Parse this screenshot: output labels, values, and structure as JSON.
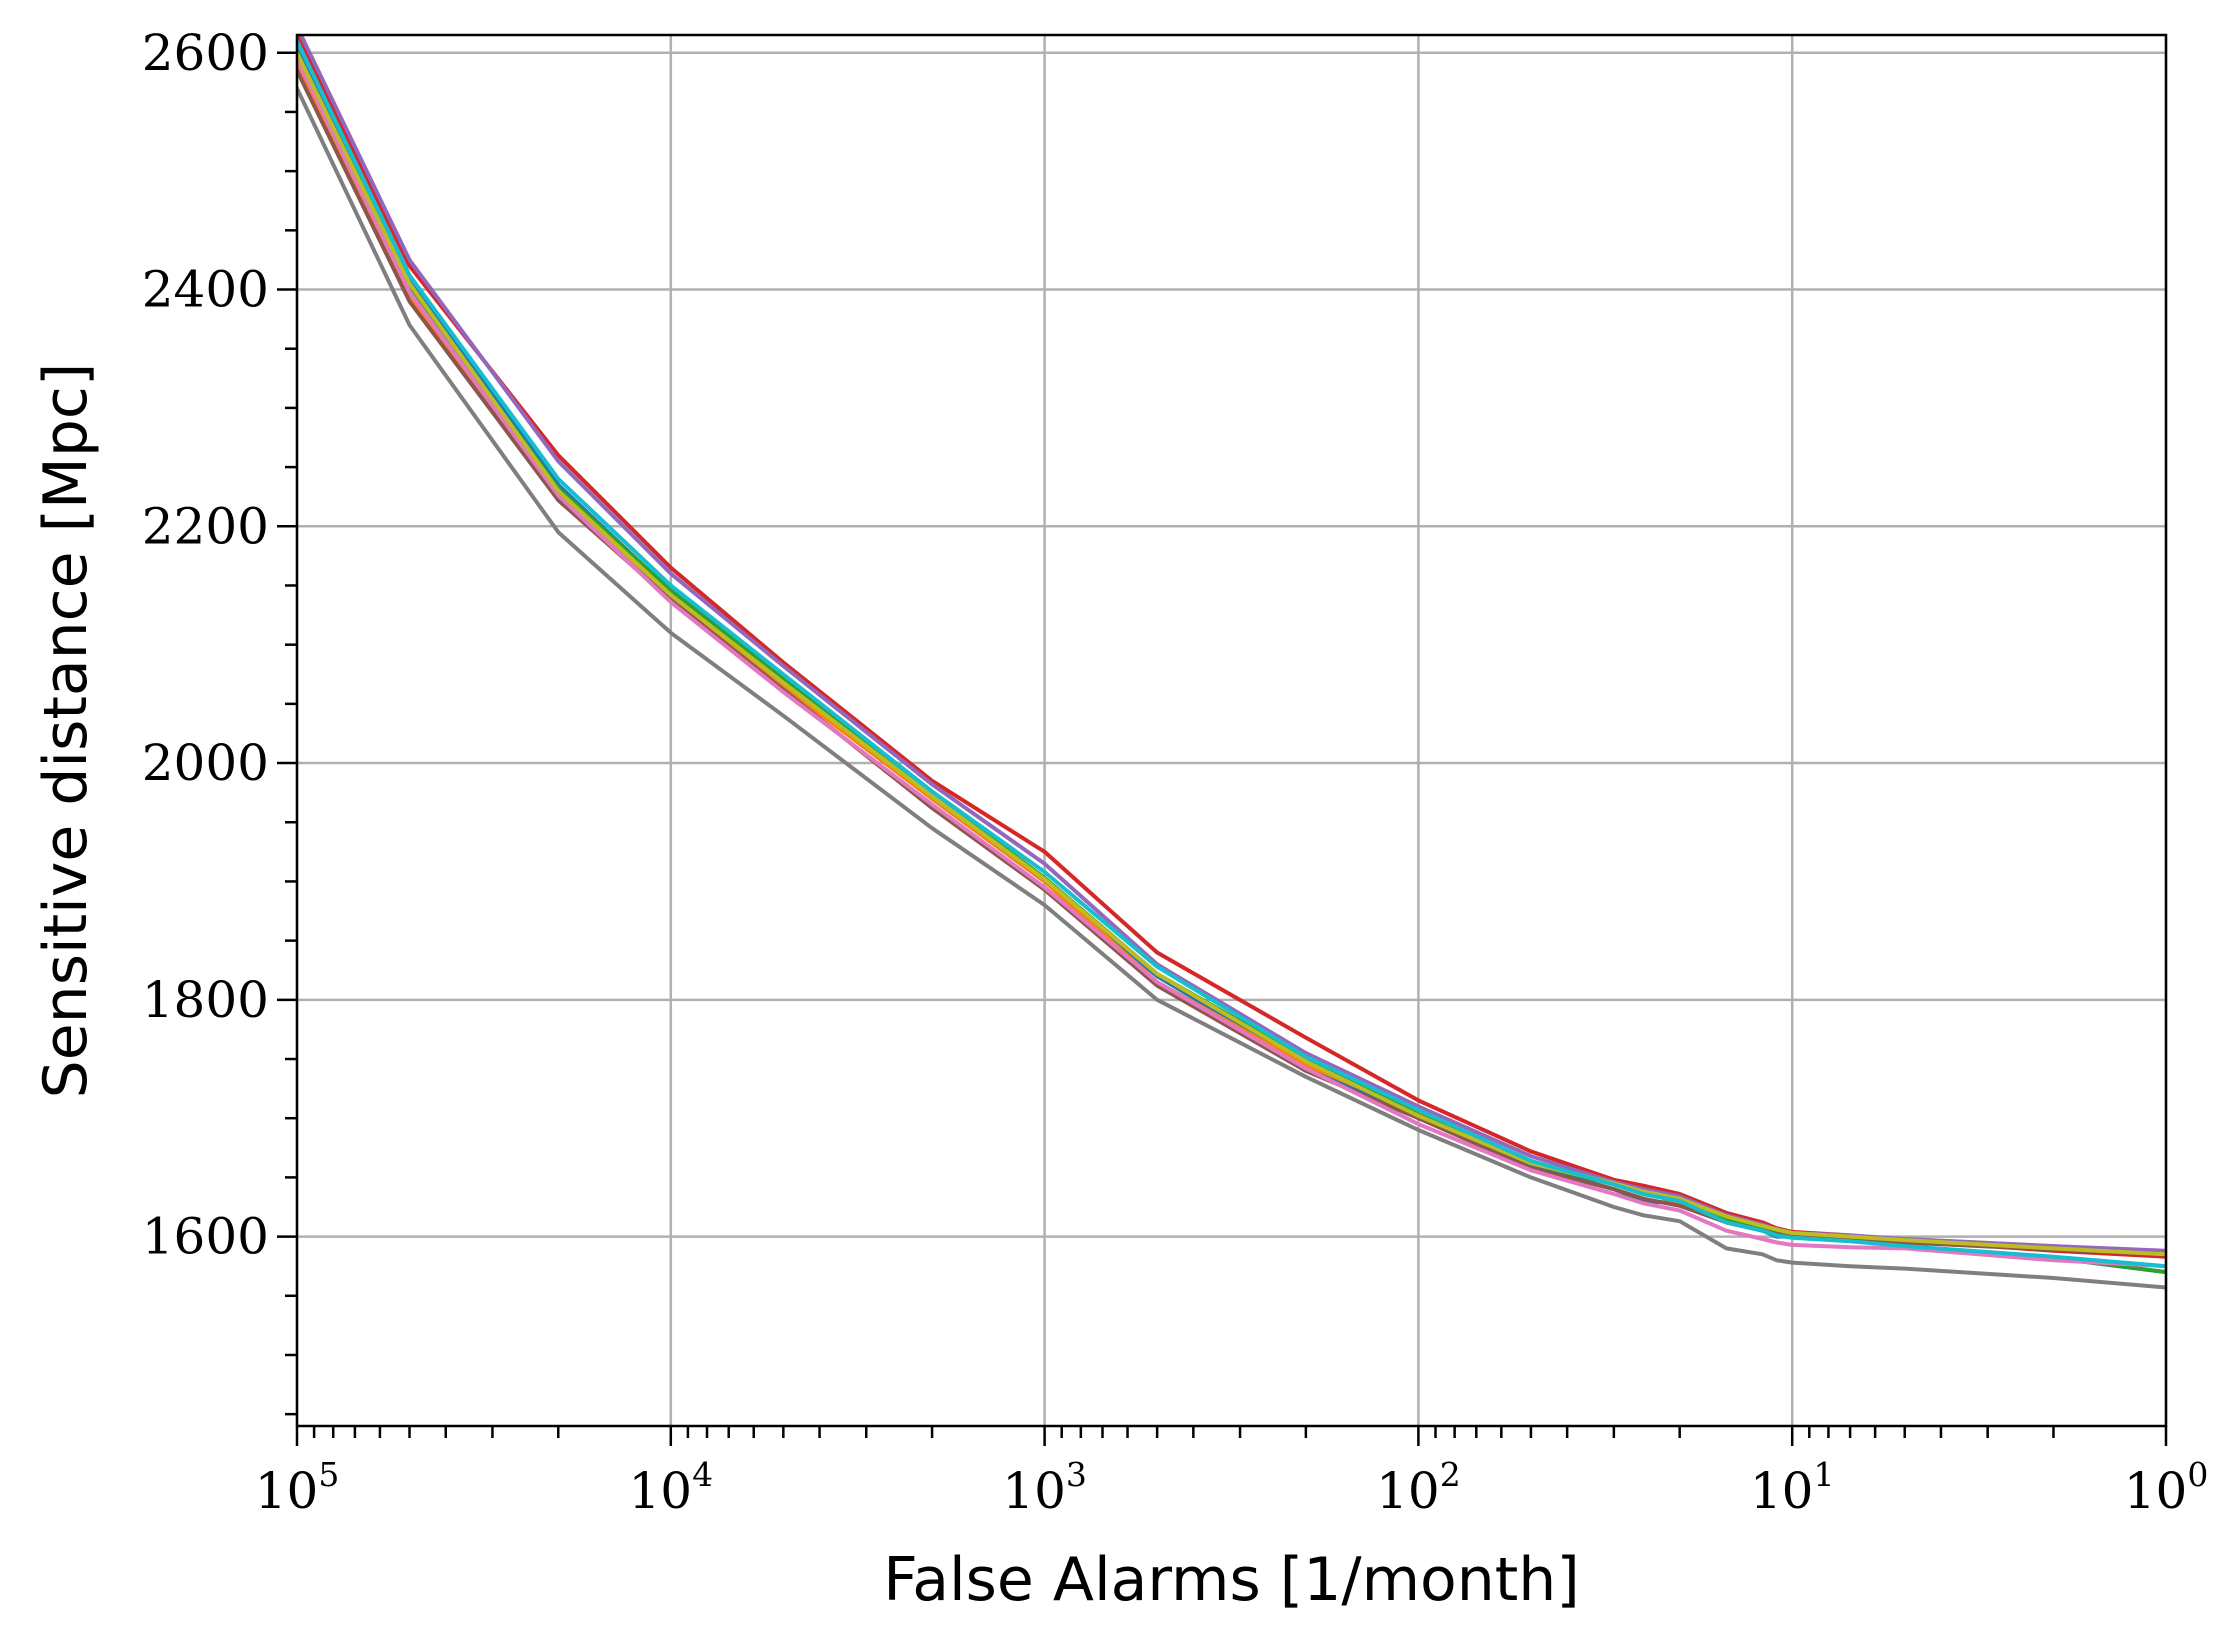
{
  "chart_data": {
    "type": "line",
    "title": "",
    "xlabel": "False Alarms [1/month]",
    "ylabel": "Sensitive distance [Mpc]",
    "x_scale": "log",
    "x_reversed": true,
    "xlim": [
      100000,
      1
    ],
    "ylim": [
      1440,
      2615
    ],
    "x_ticks": [
      {
        "value": 100000,
        "base": "10",
        "exp": "5"
      },
      {
        "value": 10000,
        "base": "10",
        "exp": "4"
      },
      {
        "value": 1000,
        "base": "10",
        "exp": "3"
      },
      {
        "value": 100,
        "base": "10",
        "exp": "2"
      },
      {
        "value": 10,
        "base": "10",
        "exp": "1"
      },
      {
        "value": 1,
        "base": "10",
        "exp": "0"
      }
    ],
    "y_ticks": [
      {
        "value": 1600,
        "label": "1600"
      },
      {
        "value": 1800,
        "label": "1800"
      },
      {
        "value": 2000,
        "label": "2000"
      },
      {
        "value": 2200,
        "label": "2200"
      },
      {
        "value": 2400,
        "label": "2400"
      },
      {
        "value": 2600,
        "label": "2600"
      }
    ],
    "grid": true,
    "legend": "none",
    "x": [
      100000,
      50000,
      20000,
      10000,
      5000,
      2000,
      1000,
      500,
      200,
      100,
      50,
      30,
      25,
      20,
      15,
      12,
      11,
      10,
      7,
      5,
      2,
      1
    ],
    "series": [
      {
        "color": "#1f77b4",
        "values": [
          2605,
          2410,
          2235,
          2145,
          2070,
          1970,
          1900,
          1820,
          1745,
          1700,
          1660,
          1640,
          1630,
          1628,
          1612,
          1605,
          1600,
          1600,
          1597,
          1592,
          1582,
          1570
        ]
      },
      {
        "color": "#ff7f0e",
        "values": [
          2590,
          2395,
          2225,
          2140,
          2065,
          1970,
          1900,
          1815,
          1745,
          1705,
          1663,
          1645,
          1638,
          1628,
          1615,
          1608,
          1605,
          1603,
          1600,
          1598,
          1592,
          1585
        ]
      },
      {
        "color": "#2ca02c",
        "values": [
          2600,
          2402,
          2232,
          2146,
          2072,
          1974,
          1903,
          1822,
          1750,
          1703,
          1662,
          1644,
          1636,
          1630,
          1614,
          1606,
          1603,
          1600,
          1597,
          1592,
          1582,
          1570
        ]
      },
      {
        "color": "#d62728",
        "values": [
          2615,
          2420,
          2260,
          2165,
          2085,
          1985,
          1925,
          1840,
          1768,
          1715,
          1672,
          1648,
          1643,
          1636,
          1620,
          1612,
          1607,
          1604,
          1601,
          1597,
          1588,
          1583
        ]
      },
      {
        "color": "#9467bd",
        "values": [
          2622,
          2425,
          2255,
          2160,
          2082,
          1982,
          1915,
          1830,
          1755,
          1710,
          1668,
          1646,
          1640,
          1634,
          1618,
          1610,
          1606,
          1603,
          1601,
          1598,
          1592,
          1588
        ]
      },
      {
        "color": "#8c564b",
        "values": [
          2585,
          2390,
          2222,
          2138,
          2062,
          1962,
          1893,
          1812,
          1740,
          1700,
          1658,
          1640,
          1632,
          1626,
          1612,
          1605,
          1602,
          1600,
          1597,
          1595,
          1589,
          1585
        ]
      },
      {
        "color": "#e377c2",
        "values": [
          2595,
          2398,
          2226,
          2136,
          2060,
          1965,
          1895,
          1815,
          1742,
          1695,
          1656,
          1636,
          1628,
          1622,
          1605,
          1598,
          1595,
          1593,
          1591,
          1590,
          1580,
          1575
        ]
      },
      {
        "color": "#7f7f7f",
        "values": [
          2570,
          2370,
          2195,
          2110,
          2040,
          1945,
          1880,
          1800,
          1735,
          1690,
          1650,
          1625,
          1618,
          1613,
          1590,
          1585,
          1580,
          1578,
          1575,
          1573,
          1565,
          1557
        ]
      },
      {
        "color": "#bcbd22",
        "values": [
          2600,
          2405,
          2230,
          2142,
          2068,
          1972,
          1902,
          1822,
          1748,
          1702,
          1662,
          1645,
          1638,
          1632,
          1617,
          1609,
          1606,
          1603,
          1600,
          1597,
          1590,
          1585
        ]
      },
      {
        "color": "#17becf",
        "values": [
          2610,
          2412,
          2240,
          2150,
          2075,
          1976,
          1908,
          1828,
          1752,
          1707,
          1664,
          1644,
          1636,
          1630,
          1612,
          1605,
          1601,
          1599,
          1596,
          1592,
          1583,
          1575
        ]
      }
    ]
  }
}
